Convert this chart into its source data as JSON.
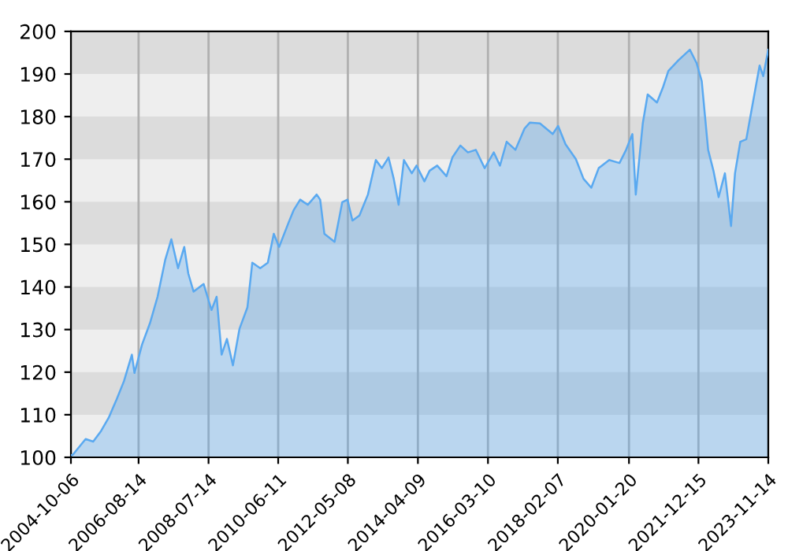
{
  "chart_data": {
    "type": "area",
    "x": [
      "2004-10-06",
      "2004-10-25",
      "2005-03-02",
      "2005-05-17",
      "2005-08-04",
      "2005-10-19",
      "2006-01-06",
      "2006-03-21",
      "2006-06-08",
      "2006-07-04",
      "2006-09-18",
      "2006-12-06",
      "2007-02-20",
      "2007-05-07",
      "2007-07-08",
      "2007-09-13",
      "2007-11-14",
      "2007-12-24",
      "2008-02-15",
      "2008-05-26",
      "2008-08-13",
      "2008-10-03",
      "2008-11-22",
      "2009-01-14",
      "2009-03-15",
      "2009-05-20",
      "2009-08-07",
      "2009-09-25",
      "2009-12-13",
      "2010-02-27",
      "2010-04-28",
      "2010-06-20",
      "2010-09-21",
      "2010-11-12",
      "2011-01-17",
      "2011-02-23",
      "2011-04-04",
      "2011-07-01",
      "2011-08-05",
      "2011-09-16",
      "2011-12-27",
      "2012-03-13",
      "2012-05-04",
      "2012-06-23",
      "2012-09-01",
      "2012-11-25",
      "2013-02-12",
      "2013-04-13",
      "2013-06-19",
      "2013-08-10",
      "2013-09-28",
      "2013-11-20",
      "2014-02-07",
      "2014-03-26",
      "2014-06-13",
      "2014-08-04",
      "2014-10-19",
      "2015-01-20",
      "2015-03-20",
      "2015-06-08",
      "2015-08-22",
      "2015-11-09",
      "2016-02-06",
      "2016-05-07",
      "2016-07-08",
      "2016-09-13",
      "2016-12-10",
      "2017-03-11",
      "2017-05-04",
      "2017-08-12",
      "2017-12-18",
      "2018-02-10",
      "2018-04-25",
      "2018-08-07",
      "2018-10-22",
      "2019-01-08",
      "2019-03-23",
      "2019-07-06",
      "2019-10-17",
      "2019-12-22",
      "2020-02-23",
      "2020-03-28",
      "2020-06-06",
      "2020-07-25",
      "2020-10-26",
      "2020-12-27",
      "2021-02-17",
      "2021-05-28",
      "2021-09-20",
      "2021-11-26",
      "2022-01-17",
      "2022-03-22",
      "2022-05-14",
      "2022-07-05",
      "2022-09-06",
      "2022-11-06",
      "2022-12-16",
      "2023-02-07",
      "2023-04-08",
      "2023-06-13",
      "2023-08-19",
      "2023-09-24",
      "2023-11-14"
    ],
    "series": [
      {
        "color": "#5aa9f0",
        "values": [
          100.5,
          100.6,
          104.3,
          103.7,
          106.2,
          109.3,
          113.6,
          117.9,
          124.1,
          119.8,
          126.5,
          131.5,
          137.7,
          146.3,
          151.2,
          144.4,
          149.4,
          143.2,
          138.9,
          140.7,
          134.6,
          137.7,
          124.1,
          127.8,
          121.6,
          130.2,
          135.2,
          145.7,
          144.4,
          145.7,
          152.5,
          149.4,
          155.0,
          158.0,
          160.5,
          159.9,
          159.3,
          161.7,
          160.5,
          152.5,
          150.6,
          159.9,
          160.5,
          155.6,
          156.8,
          161.7,
          169.8,
          167.9,
          170.4,
          165.4,
          159.3,
          169.8,
          166.7,
          168.5,
          164.8,
          167.3,
          168.5,
          166.0,
          170.4,
          173.2,
          171.6,
          172.2,
          167.9,
          171.6,
          168.5,
          174.1,
          172.2,
          177.2,
          178.6,
          178.4,
          175.9,
          177.8,
          173.5,
          170.0,
          165.4,
          163.3,
          167.9,
          169.8,
          169.1,
          172.2,
          175.9,
          161.7,
          178.4,
          185.2,
          183.3,
          187.0,
          190.7,
          193.2,
          195.7,
          192.6,
          188.3,
          172.2,
          167.3,
          161.1,
          166.7,
          154.3,
          166.7,
          174.1,
          174.7,
          183.3,
          192.0,
          189.5,
          195.7
        ]
      }
    ],
    "xlim": [
      "2004-10-06",
      "2023-11-14"
    ],
    "xticks": [
      "2004-10-06",
      "2006-08-14",
      "2008-07-14",
      "2010-06-11",
      "2012-05-08",
      "2014-04-09",
      "2016-03-10",
      "2018-02-07",
      "2020-01-20",
      "2021-12-15",
      "2023-11-14"
    ],
    "ylim": [
      100,
      200
    ],
    "yticks": [
      100,
      110,
      120,
      130,
      140,
      150,
      160,
      170,
      180,
      190,
      200
    ],
    "grid": "x",
    "bands": [
      {
        "axis": "y",
        "from": 110,
        "to": 120,
        "color": "#dcdcdc"
      },
      {
        "axis": "y",
        "from": 130,
        "to": 140,
        "color": "#dcdcdc"
      },
      {
        "axis": "y",
        "from": 150,
        "to": 160,
        "color": "#dcdcdc"
      },
      {
        "axis": "y",
        "from": 170,
        "to": 180,
        "color": "#dcdcdc"
      },
      {
        "axis": "y",
        "from": 190,
        "to": 200,
        "color": "#dcdcdc"
      }
    ]
  }
}
